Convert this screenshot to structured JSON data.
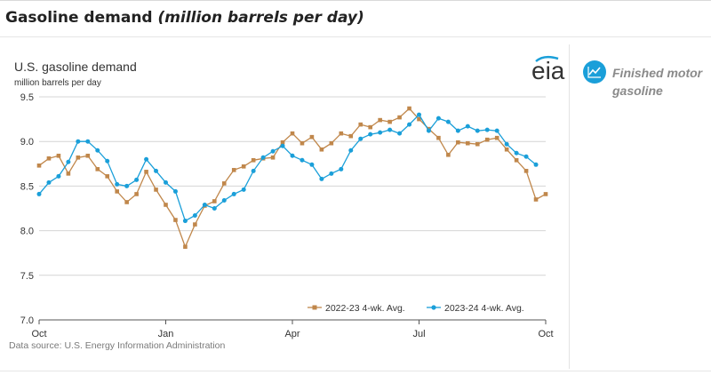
{
  "page": {
    "title_main": "Gasoline demand",
    "title_sub": "(million barrels per day)"
  },
  "sidebar": {
    "items": [
      {
        "label": "Finished motor gasoline",
        "icon": "line-chart-icon",
        "color": "#1a9fd9"
      }
    ]
  },
  "logo": {
    "text": "eia"
  },
  "source": "Data source: U.S. Energy Information Administration",
  "chart_data": {
    "type": "line",
    "title": "U.S. gasoline demand",
    "ylabel": "million barrels per day",
    "xlabel": "",
    "ylim": [
      7.0,
      9.5
    ],
    "yticks": [
      "9.5",
      "9.0",
      "8.5",
      "8.0",
      "7.5",
      "7.0"
    ],
    "xticks": [
      "Oct",
      "Jan",
      "Apr",
      "Jul",
      "Oct"
    ],
    "grid": true,
    "legend_position": "bottom-right",
    "series": [
      {
        "name": "2022-23  4-wk. Avg.",
        "color": "#c0874b",
        "marker": "square",
        "values": [
          8.73,
          8.81,
          8.84,
          8.64,
          8.82,
          8.84,
          8.69,
          8.61,
          8.44,
          8.32,
          8.41,
          8.66,
          8.46,
          8.29,
          8.12,
          7.82,
          8.07,
          8.28,
          8.33,
          8.53,
          8.68,
          8.72,
          8.79,
          8.81,
          8.82,
          8.99,
          9.09,
          8.98,
          9.05,
          8.91,
          8.98,
          9.09,
          9.06,
          9.19,
          9.16,
          9.24,
          9.22,
          9.27,
          9.37,
          9.25,
          9.14,
          9.04,
          8.85,
          8.99,
          8.98,
          8.97,
          9.02,
          9.04,
          8.91,
          8.79,
          8.67,
          8.35,
          8.41
        ]
      },
      {
        "name": "2023-24  4-wk. Avg.",
        "color": "#1a9fd9",
        "marker": "circle",
        "values": [
          8.41,
          8.54,
          8.61,
          8.77,
          9.0,
          9.0,
          8.9,
          8.78,
          8.52,
          8.5,
          8.57,
          8.8,
          8.67,
          8.54,
          8.44,
          8.11,
          8.17,
          8.29,
          8.25,
          8.34,
          8.41,
          8.46,
          8.67,
          8.82,
          8.89,
          8.95,
          8.84,
          8.79,
          8.74,
          8.58,
          8.64,
          8.69,
          8.9,
          9.03,
          9.08,
          9.1,
          9.13,
          9.09,
          9.19,
          9.3,
          9.12,
          9.26,
          9.22,
          9.12,
          9.17,
          9.12,
          9.13,
          9.12,
          8.97,
          8.87,
          8.83,
          8.74
        ]
      }
    ]
  }
}
